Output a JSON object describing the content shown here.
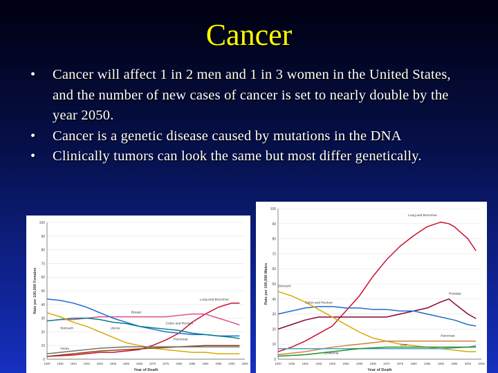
{
  "title": "Cancer",
  "bullets": [
    "Cancer will affect 1 in 2 men and 1 in 3 women in the United States, and the number of new cases of cancer is set to nearly double by the year 2050.",
    "Cancer is a genetic disease caused by mutations in the DNA",
    "Clinically tumors can look the same but most differ genetically."
  ],
  "bullet_symbol": "•",
  "chart_data": [
    {
      "type": "line",
      "ylabel": "Rate per 100,000 Females",
      "xlabel": "Year of Death",
      "ylim": [
        0,
        100
      ],
      "yticks": [
        0,
        10,
        20,
        30,
        40,
        50,
        60,
        70,
        80,
        90,
        100
      ],
      "xlim": [
        1930,
        2005
      ],
      "xticks": [
        1930,
        1935,
        1940,
        1945,
        1950,
        1955,
        1960,
        1965,
        1970,
        1975,
        1980,
        1985,
        1990,
        1995,
        2000,
        2005
      ],
      "series": [
        {
          "name": "Lung and Bronchus",
          "color": "#c8102e",
          "x": [
            1930,
            1940,
            1950,
            1955,
            1960,
            1965,
            1970,
            1975,
            1980,
            1985,
            1990,
            1995,
            2000,
            2003
          ],
          "values": [
            2,
            3,
            5,
            5,
            6,
            7,
            10,
            14,
            19,
            27,
            33,
            38,
            41,
            41
          ]
        },
        {
          "name": "Breast",
          "color": "#e0508a",
          "x": [
            1930,
            1935,
            1940,
            1945,
            1950,
            1955,
            1960,
            1965,
            1970,
            1975,
            1980,
            1985,
            1990,
            1995,
            2000,
            2003
          ],
          "values": [
            28,
            29,
            29,
            30,
            31,
            31,
            31,
            31,
            31,
            31,
            32,
            33,
            33,
            30,
            27,
            25
          ]
        },
        {
          "name": "Uterus",
          "color": "#1e6ad0",
          "x": [
            1930,
            1935,
            1940,
            1945,
            1950,
            1955,
            1960,
            1965,
            1970,
            1975,
            1980,
            1985,
            1990,
            1995,
            2000,
            2003
          ],
          "values": [
            44,
            43,
            41,
            38,
            34,
            30,
            27,
            24,
            22,
            20,
            19,
            18,
            18,
            17,
            17,
            17
          ]
        },
        {
          "name": "Colon and Rectum",
          "color": "#00808a",
          "x": [
            1930,
            1935,
            1940,
            1945,
            1950,
            1955,
            1960,
            1965,
            1970,
            1975,
            1980,
            1985,
            1990,
            1995,
            2000,
            2003
          ],
          "values": [
            28,
            29,
            30,
            30,
            29,
            27,
            26,
            24,
            23,
            22,
            21,
            19,
            18,
            17,
            16,
            15
          ]
        },
        {
          "name": "Stomach",
          "color": "#d8a800",
          "x": [
            1930,
            1935,
            1940,
            1945,
            1950,
            1955,
            1960,
            1965,
            1970,
            1975,
            1980,
            1985,
            1990,
            1995,
            2000,
            2003
          ],
          "values": [
            34,
            31,
            27,
            24,
            20,
            16,
            12,
            10,
            8,
            7,
            6,
            5,
            5,
            4,
            4,
            4
          ]
        },
        {
          "name": "Pancreas",
          "color": "#8b4513",
          "x": [
            1930,
            1940,
            1950,
            1960,
            1970,
            1980,
            1990,
            2000,
            2003
          ],
          "values": [
            2,
            4,
            6,
            7,
            8,
            9,
            10,
            10,
            10
          ]
        },
        {
          "name": "Ovary",
          "color": "#707070",
          "x": [
            1930,
            1940,
            1950,
            1960,
            1970,
            1980,
            1990,
            2000,
            2003
          ],
          "values": [
            4,
            6,
            8,
            9,
            9,
            9,
            9,
            9,
            9
          ]
        }
      ],
      "labels": [
        "Lung and Bronchus",
        "Breast",
        "Uterus",
        "Colon and Rectum",
        "Stomach",
        "Pancreas",
        "Ovary"
      ]
    },
    {
      "type": "line",
      "ylabel": "Rate per 100,000 Males",
      "xlabel": "Year of Death",
      "ylim": [
        0,
        100
      ],
      "yticks": [
        0,
        10,
        20,
        30,
        40,
        50,
        60,
        70,
        80,
        90,
        100
      ],
      "xlim": [
        1930,
        2005
      ],
      "xticks": [
        1930,
        1935,
        1940,
        1945,
        1950,
        1955,
        1960,
        1965,
        1970,
        1975,
        1980,
        1985,
        1990,
        1995,
        2000,
        2005
      ],
      "series": [
        {
          "name": "Lung and Bronchus",
          "color": "#c8102e",
          "x": [
            1930,
            1935,
            1940,
            1945,
            1950,
            1955,
            1960,
            1965,
            1970,
            1975,
            1980,
            1985,
            1990,
            1993,
            1995,
            2000,
            2003
          ],
          "values": [
            5,
            8,
            12,
            17,
            22,
            32,
            42,
            55,
            66,
            75,
            82,
            88,
            91,
            90,
            88,
            80,
            72
          ]
        },
        {
          "name": "Prostate",
          "color": "#8b0030",
          "x": [
            1930,
            1935,
            1940,
            1945,
            1950,
            1955,
            1960,
            1965,
            1970,
            1975,
            1980,
            1985,
            1990,
            1993,
            1995,
            2000,
            2003
          ],
          "values": [
            20,
            23,
            26,
            28,
            28,
            28,
            28,
            28,
            28,
            30,
            32,
            34,
            38,
            40,
            37,
            30,
            27
          ]
        },
        {
          "name": "Colon and Rectum",
          "color": "#1e6ad0",
          "x": [
            1930,
            1935,
            1940,
            1945,
            1950,
            1955,
            1960,
            1965,
            1970,
            1975,
            1980,
            1985,
            1990,
            1995,
            2000,
            2003
          ],
          "values": [
            30,
            32,
            34,
            35,
            35,
            34,
            34,
            33,
            33,
            32,
            32,
            30,
            28,
            26,
            23,
            22
          ]
        },
        {
          "name": "Stomach",
          "color": "#d8a800",
          "x": [
            1930,
            1935,
            1940,
            1945,
            1950,
            1955,
            1960,
            1965,
            1970,
            1975,
            1980,
            1985,
            1990,
            1995,
            2000,
            2003
          ],
          "values": [
            45,
            42,
            38,
            33,
            28,
            23,
            18,
            14,
            12,
            10,
            9,
            8,
            7,
            6,
            5,
            5
          ]
        },
        {
          "name": "Pancreas",
          "color": "#d08040",
          "x": [
            1930,
            1940,
            1950,
            1960,
            1970,
            1980,
            1990,
            2000,
            2003
          ],
          "values": [
            3,
            5,
            8,
            10,
            12,
            12,
            12,
            12,
            12
          ]
        },
        {
          "name": "Liver",
          "color": "#40a0c0",
          "x": [
            1930,
            1940,
            1950,
            1960,
            1970,
            1980,
            1990,
            2000,
            2003
          ],
          "values": [
            7,
            7,
            7,
            7,
            7,
            7,
            7,
            8,
            9
          ]
        },
        {
          "name": "Leukemia",
          "color": "#209020",
          "x": [
            1930,
            1940,
            1950,
            1960,
            1970,
            1980,
            1990,
            2000,
            2003
          ],
          "values": [
            2,
            3,
            5,
            7,
            8,
            8,
            8,
            8,
            8
          ]
        }
      ],
      "labels": [
        "Lung and Bronchus",
        "Prostate",
        "Colon and Rectum",
        "Stomach",
        "Pancreas",
        "Liver",
        "Leukemia"
      ]
    }
  ]
}
